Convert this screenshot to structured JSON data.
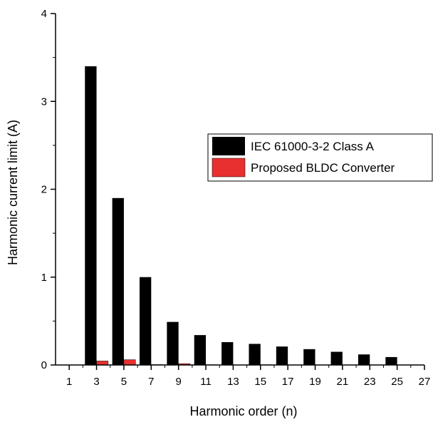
{
  "chart_data": {
    "type": "bar",
    "categories": [
      "3",
      "5",
      "7",
      "9",
      "11",
      "13",
      "15",
      "17",
      "19",
      "21",
      "23",
      "25"
    ],
    "x": [
      3,
      5,
      7,
      9,
      11,
      13,
      15,
      17,
      19,
      21,
      23,
      25
    ],
    "series": [
      {
        "name": "IEC 61000-3-2 Class A",
        "color": "#000000",
        "values": [
          3.4,
          1.9,
          1.0,
          0.49,
          0.34,
          0.26,
          0.24,
          0.21,
          0.18,
          0.15,
          0.12,
          0.09
        ]
      },
      {
        "name": "Proposed BLDC Converter",
        "color": "#e83030",
        "values": [
          0.045,
          0.06,
          0.004,
          0.015,
          0.003,
          0.002,
          0.003,
          0.002,
          0.002,
          0.002,
          0.002,
          0.002
        ]
      }
    ],
    "xlabel": "Harmonic order (n)",
    "ylabel": "Harmonic current limit (A)",
    "xticks": [
      1,
      3,
      5,
      7,
      9,
      11,
      13,
      15,
      17,
      19,
      21,
      23,
      25,
      27
    ],
    "yticks": [
      0,
      1,
      2,
      3,
      4
    ],
    "xlim": [
      0,
      27
    ],
    "ylim": [
      0,
      4
    ],
    "grid": false,
    "legend_position": "right"
  }
}
